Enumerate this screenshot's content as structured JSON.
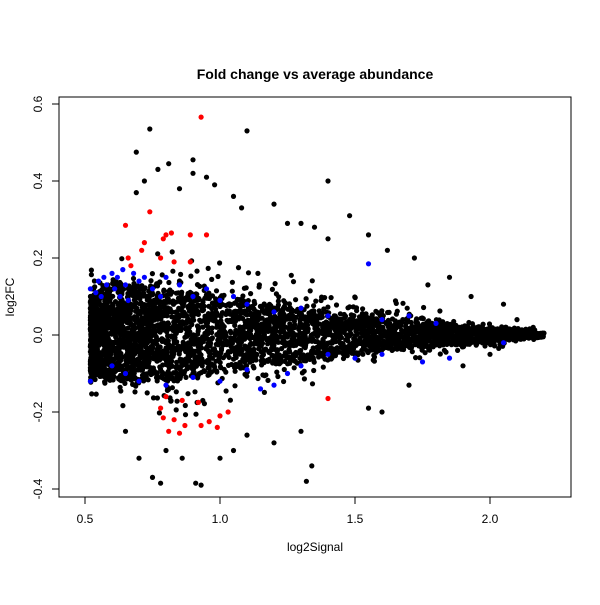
{
  "chart_data": {
    "type": "scatter",
    "title": "Fold change vs average abundance",
    "xlabel": "log2Signal",
    "ylabel": "log2FC",
    "xlim": [
      0.45,
      2.25
    ],
    "ylim": [
      -0.42,
      0.62
    ],
    "xticks": [
      "0.5",
      "1.0",
      "1.5",
      "2.0"
    ],
    "yticks": [
      "-0.4",
      "-0.2",
      "0.0",
      "0.2",
      "0.4",
      "0.6"
    ],
    "grid": false,
    "colors": {
      "default": "#000000",
      "highlight_blue": "#0000ff",
      "highlight_red": "#ff0000"
    },
    "dense_band": [
      [
        0.52,
        -0.1,
        0.1
      ],
      [
        0.6,
        -0.12,
        0.14
      ],
      [
        0.8,
        -0.12,
        0.12
      ],
      [
        1.0,
        -0.1,
        0.1
      ],
      [
        1.2,
        -0.08,
        0.08
      ],
      [
        1.4,
        -0.06,
        0.06
      ],
      [
        1.6,
        -0.045,
        0.04
      ],
      [
        1.8,
        -0.03,
        0.03
      ],
      [
        2.0,
        -0.02,
        0.02
      ],
      [
        2.2,
        -0.005,
        0.005
      ]
    ],
    "sparse_band": [
      [
        0.52,
        -0.18,
        0.18
      ],
      [
        0.7,
        -0.25,
        0.25
      ],
      [
        0.9,
        -0.25,
        0.25
      ],
      [
        1.1,
        -0.2,
        0.22
      ],
      [
        1.3,
        -0.17,
        0.17
      ],
      [
        1.5,
        -0.12,
        0.13
      ],
      [
        1.7,
        -0.09,
        0.1
      ],
      [
        1.9,
        -0.06,
        0.06
      ],
      [
        2.1,
        -0.03,
        0.03
      ],
      [
        2.2,
        -0.01,
        0.01
      ]
    ],
    "black_points": [
      [
        0.74,
        0.535
      ],
      [
        1.1,
        0.53
      ],
      [
        0.69,
        0.475
      ],
      [
        0.9,
        0.455
      ],
      [
        0.81,
        0.445
      ],
      [
        0.77,
        0.43
      ],
      [
        1.4,
        0.4
      ],
      [
        0.9,
        0.42
      ],
      [
        0.95,
        0.41
      ],
      [
        0.72,
        0.4
      ],
      [
        0.69,
        0.37
      ],
      [
        0.85,
        0.38
      ],
      [
        0.98,
        0.39
      ],
      [
        1.05,
        0.36
      ],
      [
        1.08,
        0.33
      ],
      [
        1.2,
        0.34
      ],
      [
        1.25,
        0.29
      ],
      [
        1.3,
        0.29
      ],
      [
        1.35,
        0.28
      ],
      [
        1.48,
        0.31
      ],
      [
        1.4,
        0.25
      ],
      [
        1.55,
        0.26
      ],
      [
        1.62,
        0.22
      ],
      [
        1.72,
        0.2
      ],
      [
        1.85,
        0.15
      ],
      [
        1.77,
        0.13
      ],
      [
        1.93,
        0.1
      ],
      [
        2.05,
        0.08
      ],
      [
        2.1,
        0.04
      ],
      [
        2.16,
        0.02
      ],
      [
        2.2,
        0.005
      ],
      [
        0.75,
        -0.37
      ],
      [
        0.78,
        -0.385
      ],
      [
        0.91,
        -0.385
      ],
      [
        0.93,
        -0.39
      ],
      [
        1.34,
        -0.34
      ],
      [
        1.32,
        -0.38
      ],
      [
        0.7,
        -0.32
      ],
      [
        0.86,
        -0.32
      ],
      [
        1.0,
        -0.32
      ],
      [
        1.05,
        -0.3
      ],
      [
        1.2,
        -0.28
      ],
      [
        1.3,
        -0.25
      ],
      [
        1.55,
        -0.19
      ],
      [
        1.6,
        -0.2
      ],
      [
        1.7,
        -0.13
      ],
      [
        1.9,
        -0.08
      ],
      [
        2.0,
        -0.05
      ],
      [
        0.65,
        -0.25
      ],
      [
        0.8,
        -0.3
      ],
      [
        1.1,
        -0.26
      ]
    ],
    "blue_points": [
      [
        0.52,
        -0.12
      ],
      [
        0.52,
        0.12
      ],
      [
        0.54,
        0.11
      ],
      [
        0.55,
        0.14
      ],
      [
        0.56,
        0.1
      ],
      [
        0.57,
        0.15
      ],
      [
        0.58,
        0.13
      ],
      [
        0.6,
        0.16
      ],
      [
        0.61,
        0.12
      ],
      [
        0.62,
        0.15
      ],
      [
        0.63,
        0.1
      ],
      [
        0.64,
        0.17
      ],
      [
        0.65,
        0.13
      ],
      [
        0.66,
        0.09
      ],
      [
        0.68,
        0.16
      ],
      [
        0.7,
        0.14
      ],
      [
        0.72,
        0.15
      ],
      [
        0.75,
        0.12
      ],
      [
        0.78,
        0.1
      ],
      [
        0.8,
        0.15
      ],
      [
        0.85,
        0.13
      ],
      [
        0.9,
        0.1
      ],
      [
        0.95,
        0.12
      ],
      [
        1.0,
        0.09
      ],
      [
        1.05,
        0.1
      ],
      [
        1.1,
        0.08
      ],
      [
        1.2,
        0.06
      ],
      [
        1.3,
        0.07
      ],
      [
        1.4,
        0.05
      ],
      [
        1.55,
        0.185
      ],
      [
        1.6,
        0.04
      ],
      [
        1.7,
        0.05
      ],
      [
        1.8,
        0.03
      ],
      [
        0.6,
        -0.08
      ],
      [
        0.7,
        -0.12
      ],
      [
        0.8,
        -0.13
      ],
      [
        0.9,
        -0.11
      ],
      [
        1.0,
        -0.12
      ],
      [
        1.1,
        -0.09
      ],
      [
        1.2,
        -0.13
      ],
      [
        1.3,
        -0.08
      ],
      [
        1.4,
        -0.05
      ],
      [
        1.5,
        -0.06
      ],
      [
        1.6,
        -0.05
      ],
      [
        1.75,
        -0.07
      ],
      [
        1.85,
        -0.06
      ],
      [
        2.05,
        -0.02
      ],
      [
        0.65,
        -0.1
      ],
      [
        1.15,
        -0.14
      ],
      [
        1.25,
        -0.1
      ]
    ],
    "red_points": [
      [
        0.93,
        0.566
      ],
      [
        0.74,
        0.32
      ],
      [
        0.65,
        0.285
      ],
      [
        0.95,
        0.26
      ],
      [
        0.72,
        0.24
      ],
      [
        0.79,
        0.25
      ],
      [
        0.8,
        0.26
      ],
      [
        0.82,
        0.265
      ],
      [
        0.89,
        0.26
      ],
      [
        0.71,
        0.22
      ],
      [
        0.66,
        0.2
      ],
      [
        0.67,
        0.18
      ],
      [
        0.78,
        0.2
      ],
      [
        0.83,
        0.19
      ],
      [
        0.89,
        0.19
      ],
      [
        0.8,
        -0.16
      ],
      [
        0.86,
        -0.17
      ],
      [
        0.92,
        -0.175
      ],
      [
        0.78,
        -0.19
      ],
      [
        0.83,
        -0.22
      ],
      [
        0.87,
        -0.235
      ],
      [
        0.93,
        -0.235
      ],
      [
        0.96,
        -0.225
      ],
      [
        0.99,
        -0.24
      ],
      [
        1.0,
        -0.21
      ],
      [
        0.85,
        -0.255
      ],
      [
        0.81,
        -0.25
      ],
      [
        1.03,
        -0.2
      ],
      [
        1.4,
        -0.165
      ],
      [
        0.79,
        -0.215
      ]
    ]
  }
}
